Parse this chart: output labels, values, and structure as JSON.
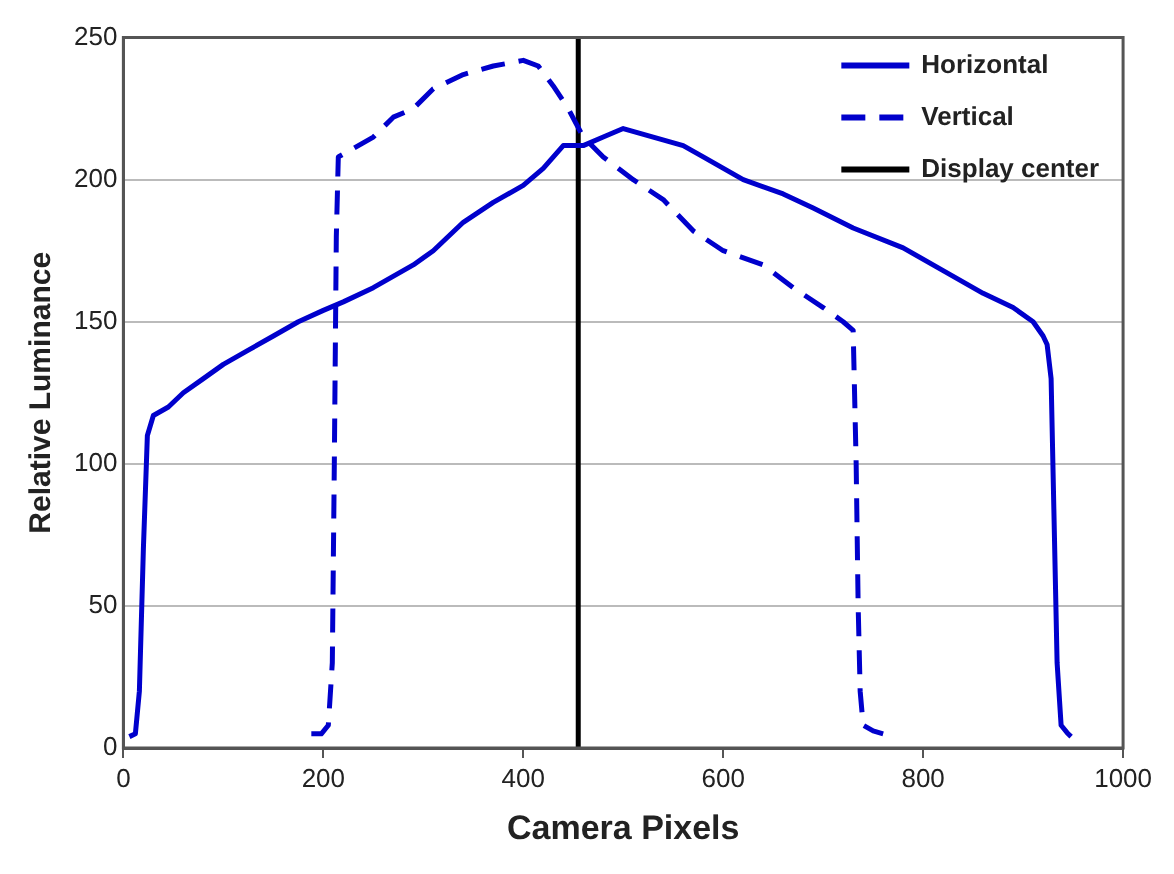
{
  "chart_data": {
    "type": "line",
    "xlabel": "Camera Pixels",
    "ylabel": "Relative Luminance",
    "xlim": [
      0,
      1000
    ],
    "xticks": [
      0,
      200,
      400,
      600,
      800,
      1000
    ],
    "ylim": [
      0,
      250
    ],
    "yticks": [
      0,
      50,
      100,
      150,
      200,
      250
    ],
    "grid": "y",
    "legend": "top right",
    "marker": "none",
    "series": [
      {
        "name": "Horizontal",
        "color": "#0000cc",
        "line_style": "solid",
        "x": [
          6,
          12,
          16,
          20,
          24,
          30,
          45,
          60,
          80,
          100,
          125,
          150,
          175,
          200,
          220,
          250,
          290,
          310,
          340,
          370,
          400,
          420,
          440,
          460,
          480,
          500,
          530,
          560,
          580,
          620,
          660,
          690,
          730,
          780,
          820,
          860,
          890,
          910,
          920,
          924,
          928,
          931,
          934,
          938,
          945,
          948
        ],
        "values": [
          4,
          5,
          20,
          70,
          110,
          117,
          120,
          125,
          130,
          135,
          140,
          145,
          150,
          154,
          157,
          162,
          170,
          175,
          185,
          192,
          198,
          204,
          212,
          212,
          215,
          218,
          215,
          212,
          208,
          200,
          195,
          190,
          183,
          176,
          168,
          160,
          155,
          150,
          145,
          142,
          130,
          80,
          30,
          8,
          5,
          4
        ]
      },
      {
        "name": "Vertical",
        "color": "#0000cc",
        "line_style": "dashed",
        "x": [
          188,
          198,
          205,
          209,
          211,
          213,
          215,
          225,
          250,
          270,
          290,
          310,
          340,
          370,
          400,
          415,
          430,
          445,
          460,
          480,
          510,
          540,
          570,
          600,
          640,
          670,
          700,
          720,
          730,
          733,
          735,
          737,
          740,
          750,
          760
        ],
        "values": [
          5,
          5,
          8,
          30,
          100,
          180,
          208,
          210,
          215,
          222,
          225,
          232,
          237,
          240,
          242,
          240,
          233,
          225,
          215,
          208,
          200,
          193,
          182,
          175,
          170,
          162,
          155,
          150,
          147,
          100,
          50,
          20,
          8,
          6,
          5
        ]
      },
      {
        "name": "Display center",
        "color": "#000000",
        "line_style": "solid",
        "x": [
          455,
          455
        ],
        "values": [
          0,
          250
        ]
      }
    ]
  }
}
